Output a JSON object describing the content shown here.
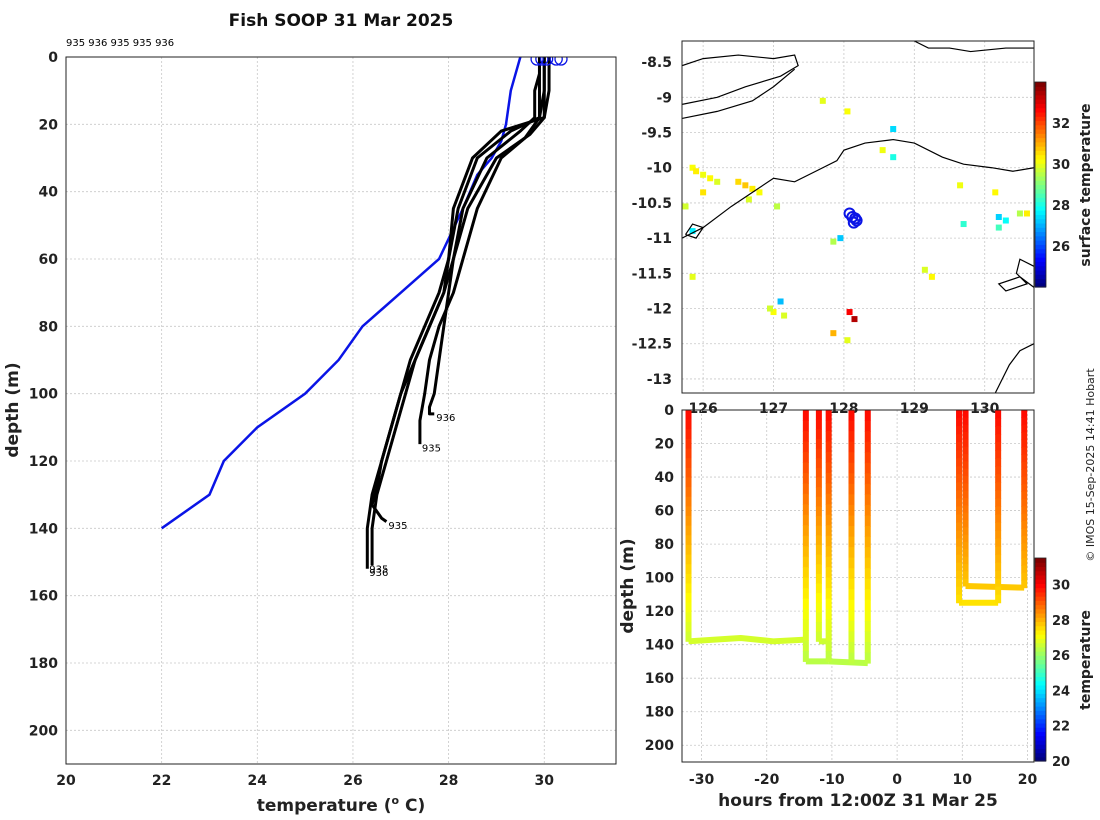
{
  "title": "Fish SOOP 31 Mar 2025",
  "credit": "© IMOS 15-Sep-2025 14:41 Hobart",
  "colors": {
    "profile": "#000000",
    "climatology": "#0a14e6",
    "grid": "#c8c8c8"
  },
  "chart_data": [
    {
      "id": "profiles",
      "type": "line",
      "xlabel": "temperature (",
      "xlabel_sup": "o",
      "xlabel_unit": " C)",
      "ylabel": "depth (m)",
      "xlim": [
        20,
        31.5
      ],
      "ylim": [
        0,
        210
      ],
      "xticks": [
        20,
        22,
        24,
        26,
        28,
        30
      ],
      "yticks": [
        0,
        20,
        40,
        60,
        80,
        100,
        120,
        140,
        160,
        180,
        200
      ],
      "top_labels": "935 936 935 935 936",
      "climatology": {
        "name": "climatology",
        "temps": [
          29.5,
          29.4,
          29.3,
          29.2,
          29.1,
          28.9,
          28.6,
          28.3,
          27.8,
          27.4,
          27.0,
          26.6,
          26.2,
          25.7,
          25.0,
          24.0,
          23.3,
          23.0,
          22.0
        ],
        "depths": [
          0,
          5,
          10,
          20,
          25,
          30,
          35,
          45,
          60,
          65,
          70,
          75,
          80,
          90,
          100,
          110,
          120,
          130,
          140
        ]
      },
      "profiles": [
        {
          "label": "935",
          "temps": [
            29.9,
            29.9,
            29.9,
            29.9,
            29.3,
            28.6,
            28.2,
            28.0,
            27.9,
            27.6,
            27.3,
            27.1,
            26.9,
            26.7,
            26.5,
            26.4,
            26.4
          ],
          "depths": [
            0,
            5,
            10,
            18,
            22,
            30,
            45,
            60,
            70,
            80,
            90,
            100,
            110,
            120,
            130,
            140,
            151
          ]
        },
        {
          "label": "936",
          "temps": [
            30.0,
            30.0,
            30.0,
            30.0,
            29.1,
            28.5,
            28.1,
            28.0,
            27.8,
            27.5,
            27.2,
            27.0,
            26.8,
            26.6,
            26.4,
            26.3,
            26.3
          ],
          "depths": [
            0,
            5,
            10,
            18,
            22,
            30,
            45,
            60,
            70,
            80,
            90,
            100,
            110,
            120,
            130,
            140,
            152
          ]
        },
        {
          "label": "935",
          "temps": [
            29.9,
            29.9,
            29.8,
            29.8,
            29.5,
            28.8,
            28.3,
            28.1,
            27.9,
            27.6,
            27.3,
            27.0,
            26.8,
            26.6,
            26.5,
            26.4,
            26.6,
            26.7
          ],
          "depths": [
            0,
            5,
            10,
            18,
            22,
            30,
            45,
            60,
            70,
            80,
            90,
            100,
            110,
            120,
            128,
            133,
            137,
            138
          ]
        },
        {
          "label": "936",
          "temps": [
            30.1,
            30.1,
            30.1,
            30.0,
            29.7,
            29.0,
            28.4,
            28.1,
            28.0,
            27.9,
            27.8,
            27.7,
            27.6,
            27.6,
            27.7
          ],
          "depths": [
            0,
            5,
            10,
            18,
            23,
            30,
            45,
            60,
            70,
            80,
            90,
            100,
            104,
            106,
            106
          ]
        },
        {
          "label": "935",
          "temps": [
            30.0,
            30.0,
            30.0,
            29.9,
            29.6,
            29.1,
            28.6,
            28.3,
            28.1,
            27.8,
            27.6,
            27.5,
            27.4,
            27.4
          ],
          "depths": [
            0,
            5,
            10,
            18,
            24,
            30,
            45,
            60,
            70,
            80,
            90,
            100,
            108,
            115
          ]
        }
      ],
      "bottom_labels": [
        {
          "text": "936",
          "temp": 27.7,
          "depth": 107
        },
        {
          "text": "935",
          "temp": 27.4,
          "depth": 116
        },
        {
          "text": "935",
          "temp": 26.7,
          "depth": 139
        },
        {
          "text": "935",
          "temp": 26.3,
          "depth": 152
        },
        {
          "text": "936",
          "temp": 26.3,
          "depth": 153
        }
      ],
      "surface_markers_temps": [
        29.85,
        29.95,
        30.05,
        30.25,
        30.35
      ]
    },
    {
      "id": "map",
      "type": "heatmap",
      "colorbar_label": "surface temperature",
      "xlim": [
        125.7,
        130.7
      ],
      "ylim": [
        -13.2,
        -8.2
      ],
      "xticks": [
        126,
        127,
        128,
        129,
        130
      ],
      "xtick_labels": [
        "126",
        "127",
        "128",
        "129",
        "130"
      ],
      "yticks": [
        -8.5,
        -9,
        -9.5,
        -10,
        -10.5,
        -11,
        -11.5,
        -12,
        -12.5,
        -13
      ],
      "ytick_labels": [
        "-8.5",
        "-9",
        "-9.5",
        "-10",
        "-10.5",
        "-11",
        "-11.5",
        "-12",
        "-12.5",
        "-13"
      ],
      "clim": [
        24,
        34
      ],
      "cticks": [
        26,
        28,
        30,
        32
      ],
      "ctick_labels": [
        "26",
        "28",
        "30",
        "32"
      ],
      "sst_pixels": [
        {
          "lon": 125.85,
          "lat": -10.0,
          "t": 30.2
        },
        {
          "lon": 125.9,
          "lat": -10.05,
          "t": 30.4
        },
        {
          "lon": 126.0,
          "lat": -10.1,
          "t": 30.1
        },
        {
          "lon": 126.1,
          "lat": -10.15,
          "t": 30.3
        },
        {
          "lon": 126.2,
          "lat": -10.2,
          "t": 29.9
        },
        {
          "lon": 126.0,
          "lat": -10.35,
          "t": 30.5
        },
        {
          "lon": 126.5,
          "lat": -10.2,
          "t": 30.6
        },
        {
          "lon": 126.6,
          "lat": -10.25,
          "t": 30.8
        },
        {
          "lon": 126.7,
          "lat": -10.3,
          "t": 30.4
        },
        {
          "lon": 126.8,
          "lat": -10.35,
          "t": 30.2
        },
        {
          "lon": 126.65,
          "lat": -10.45,
          "t": 29.9
        },
        {
          "lon": 125.85,
          "lat": -10.9,
          "t": 27.6
        },
        {
          "lon": 127.05,
          "lat": -10.55,
          "t": 29.6
        },
        {
          "lon": 128.05,
          "lat": -9.2,
          "t": 30.2
        },
        {
          "lon": 127.7,
          "lat": -9.05,
          "t": 30.0
        },
        {
          "lon": 128.7,
          "lat": -9.45,
          "t": 27.4
        },
        {
          "lon": 128.55,
          "lat": -9.75,
          "t": 30.1
        },
        {
          "lon": 128.7,
          "lat": -9.85,
          "t": 28.0
        },
        {
          "lon": 127.95,
          "lat": -11.0,
          "t": 27.2
        },
        {
          "lon": 127.85,
          "lat": -11.05,
          "t": 29.5
        },
        {
          "lon": 130.15,
          "lat": -10.35,
          "t": 30.3
        },
        {
          "lon": 130.5,
          "lat": -10.65,
          "t": 29.5
        },
        {
          "lon": 130.2,
          "lat": -10.7,
          "t": 27.3
        },
        {
          "lon": 130.3,
          "lat": -10.75,
          "t": 27.8
        },
        {
          "lon": 130.2,
          "lat": -10.85,
          "t": 28.4
        },
        {
          "lon": 129.7,
          "lat": -10.8,
          "t": 28.2
        },
        {
          "lon": 130.6,
          "lat": -10.65,
          "t": 30.4
        },
        {
          "lon": 129.15,
          "lat": -11.45,
          "t": 29.9
        },
        {
          "lon": 129.25,
          "lat": -11.55,
          "t": 30.3
        },
        {
          "lon": 129.65,
          "lat": -10.25,
          "t": 30.1
        },
        {
          "lon": 127.0,
          "lat": -12.05,
          "t": 30.2
        },
        {
          "lon": 126.95,
          "lat": -12.0,
          "t": 29.8
        },
        {
          "lon": 127.15,
          "lat": -12.1,
          "t": 29.9
        },
        {
          "lon": 127.1,
          "lat": -11.9,
          "t": 27.1
        },
        {
          "lon": 128.15,
          "lat": -12.15,
          "t": 33.5
        },
        {
          "lon": 128.08,
          "lat": -12.05,
          "t": 32.8
        },
        {
          "lon": 127.85,
          "lat": -12.35,
          "t": 31.0
        },
        {
          "lon": 128.05,
          "lat": -12.45,
          "t": 30.0
        },
        {
          "lon": 125.85,
          "lat": -11.55,
          "t": 30.0
        },
        {
          "lon": 125.75,
          "lat": -10.55,
          "t": 29.8
        }
      ],
      "ship_positions": [
        {
          "lon": 128.08,
          "lat": -10.65
        },
        {
          "lon": 128.12,
          "lat": -10.7
        },
        {
          "lon": 128.16,
          "lat": -10.72
        },
        {
          "lon": 128.14,
          "lat": -10.78
        },
        {
          "lon": 128.18,
          "lat": -10.75
        }
      ],
      "coastlines": [
        {
          "name": "north-coast-1",
          "points": [
            [
              125.7,
              -8.55
            ],
            [
              126.0,
              -8.45
            ],
            [
              126.5,
              -8.4
            ],
            [
              127.0,
              -8.45
            ],
            [
              127.3,
              -8.4
            ],
            [
              127.35,
              -8.55
            ],
            [
              127.1,
              -8.7
            ],
            [
              126.6,
              -8.85
            ],
            [
              126.2,
              -9.0
            ],
            [
              125.7,
              -9.1
            ]
          ]
        },
        {
          "name": "north-coast-2",
          "points": [
            [
              125.7,
              -9.3
            ],
            [
              126.2,
              -9.2
            ],
            [
              126.7,
              -9.05
            ],
            [
              127.0,
              -8.85
            ],
            [
              127.3,
              -8.6
            ]
          ]
        },
        {
          "name": "timor-coast",
          "points": [
            [
              125.7,
              -11.0
            ],
            [
              126.0,
              -10.85
            ],
            [
              126.4,
              -10.55
            ],
            [
              126.7,
              -10.35
            ],
            [
              127.0,
              -10.15
            ],
            [
              127.3,
              -10.2
            ],
            [
              127.6,
              -10.05
            ],
            [
              127.9,
              -9.9
            ],
            [
              128.0,
              -9.75
            ],
            [
              128.3,
              -9.65
            ],
            [
              128.7,
              -9.6
            ],
            [
              129.0,
              -9.65
            ],
            [
              129.4,
              -9.85
            ],
            [
              129.7,
              -9.95
            ],
            [
              130.1,
              -10.0
            ],
            [
              130.4,
              -10.05
            ],
            [
              130.7,
              -10.0
            ]
          ]
        },
        {
          "name": "island-1",
          "points": [
            [
              125.75,
              -10.95
            ],
            [
              125.85,
              -10.8
            ],
            [
              126.0,
              -10.85
            ],
            [
              125.9,
              -11.0
            ],
            [
              125.75,
              -10.95
            ]
          ]
        },
        {
          "name": "coast-se",
          "points": [
            [
              130.7,
              -11.4
            ],
            [
              130.5,
              -11.3
            ],
            [
              130.45,
              -11.5
            ],
            [
              130.6,
              -11.65
            ],
            [
              130.3,
              -11.75
            ],
            [
              130.2,
              -11.65
            ],
            [
              130.5,
              -11.55
            ],
            [
              130.7,
              -11.7
            ]
          ]
        },
        {
          "name": "coast-s",
          "points": [
            [
              130.7,
              -12.5
            ],
            [
              130.5,
              -12.6
            ],
            [
              130.35,
              -12.8
            ],
            [
              130.2,
              -13.1
            ],
            [
              130.15,
              -13.2
            ]
          ]
        },
        {
          "name": "coast-top",
          "points": [
            [
              129.0,
              -8.2
            ],
            [
              129.2,
              -8.3
            ],
            [
              129.5,
              -8.3
            ],
            [
              129.8,
              -8.35
            ],
            [
              130.3,
              -8.3
            ],
            [
              130.7,
              -8.3
            ]
          ]
        }
      ]
    },
    {
      "id": "section",
      "type": "scatter",
      "xlabel": "hours from 12:00Z 31 Mar 25",
      "ylabel": "depth (m)",
      "colorbar_label": "temperature",
      "xlim": [
        -33,
        21
      ],
      "ylim": [
        0,
        210
      ],
      "xticks": [
        -30,
        -20,
        -10,
        0,
        10,
        20
      ],
      "xtick_labels": [
        "-30",
        "-20",
        "-10",
        "0",
        "10",
        "20"
      ],
      "yticks": [
        0,
        20,
        40,
        60,
        80,
        100,
        120,
        140,
        160,
        180,
        200
      ],
      "ytick_labels": [
        "0",
        "20",
        "40",
        "60",
        "80",
        "100",
        "120",
        "140",
        "160",
        "180",
        "200"
      ],
      "clim": [
        20,
        31.5
      ],
      "cticks": [
        20,
        22,
        24,
        26,
        28,
        30
      ],
      "ctick_labels": [
        "20",
        "22",
        "24",
        "26",
        "28",
        "30"
      ],
      "casts": [
        {
          "hour": -32,
          "max_depth": 138,
          "surface_temp": 30.0,
          "bottom_temp": 26.6
        },
        {
          "hour": -14,
          "max_depth": 150,
          "surface_temp": 30.0,
          "bottom_temp": 26.4
        },
        {
          "hour": -12,
          "max_depth": 138,
          "surface_temp": 30.0,
          "bottom_temp": 26.6
        },
        {
          "hour": -10.5,
          "max_depth": 150,
          "surface_temp": 30.0,
          "bottom_temp": 26.4
        },
        {
          "hour": -7,
          "max_depth": 151,
          "surface_temp": 30.0,
          "bottom_temp": 26.4
        },
        {
          "hour": -4.5,
          "max_depth": 151,
          "surface_temp": 30.0,
          "bottom_temp": 26.4
        },
        {
          "hour": 9.5,
          "max_depth": 115,
          "surface_temp": 30.0,
          "bottom_temp": 27.5
        },
        {
          "hour": 10.5,
          "max_depth": 105,
          "surface_temp": 30.0,
          "bottom_temp": 27.8
        },
        {
          "hour": 15.5,
          "max_depth": 115,
          "surface_temp": 30.0,
          "bottom_temp": 27.5
        },
        {
          "hour": 19.5,
          "max_depth": 106,
          "surface_temp": 30.0,
          "bottom_temp": 27.8
        }
      ],
      "tracks": [
        {
          "hours": [
            -32,
            -24,
            -19,
            -14
          ],
          "depths": [
            138,
            136,
            138,
            137
          ],
          "temp": 26.7
        },
        {
          "hours": [
            -14,
            -10.5
          ],
          "depths": [
            150,
            150
          ],
          "temp": 26.4
        },
        {
          "hours": [
            -12,
            -10.5
          ],
          "depths": [
            138,
            138
          ],
          "temp": 26.6
        },
        {
          "hours": [
            -10.5,
            -4.5
          ],
          "depths": [
            150,
            151
          ],
          "temp": 26.4
        },
        {
          "hours": [
            9.5,
            15.5
          ],
          "depths": [
            115,
            115
          ],
          "temp": 27.5
        },
        {
          "hours": [
            10.5,
            19.5
          ],
          "depths": [
            105,
            106
          ],
          "temp": 27.8
        }
      ]
    }
  ]
}
